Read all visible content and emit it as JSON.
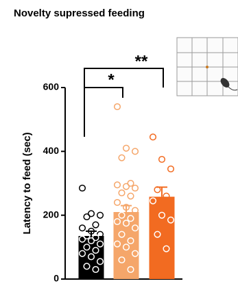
{
  "chart_data": {
    "type": "bar-scatter",
    "title": "Novelty supressed feeding",
    "y_label": "Latency to feed (sec)",
    "ylim": [
      0,
      600
    ],
    "yticks": [
      0,
      200,
      400,
      600
    ],
    "series": [
      {
        "color": "#000000",
        "values": [
          135
        ],
        "errors": [
          15
        ],
        "points": [
          285,
          205,
          200,
          195,
          170,
          160,
          150,
          140,
          135,
          130,
          125,
          120,
          110,
          100,
          90,
          80,
          70,
          55,
          40,
          30
        ]
      },
      {
        "color": "#f5a66a",
        "values": [
          210
        ],
        "errors": [
          20
        ],
        "points": [
          540,
          410,
          400,
          380,
          300,
          295,
          290,
          285,
          270,
          260,
          240,
          225,
          215,
          200,
          190,
          180,
          175,
          160,
          140,
          120,
          110,
          100,
          80,
          60,
          30
        ]
      },
      {
        "color": "#f26b21",
        "values": [
          258
        ],
        "errors": [
          30
        ],
        "points": [
          445,
          375,
          345,
          280,
          260,
          245,
          200,
          185,
          140,
          95
        ]
      }
    ],
    "annotations": [
      "*",
      "**"
    ]
  }
}
